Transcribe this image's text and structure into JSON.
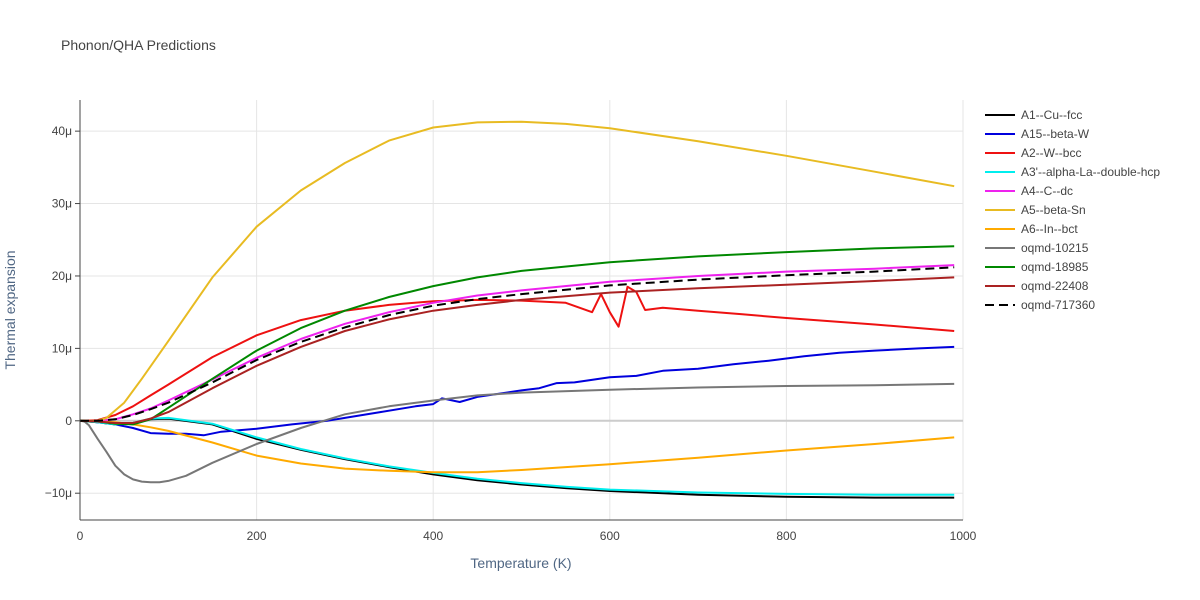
{
  "chart_data": {
    "type": "line",
    "title": "Phonon/QHA Predictions",
    "xlabel": "Temperature (K)",
    "ylabel": "Thermal expansion",
    "xlim": [
      0,
      1000
    ],
    "ylim": [
      -13.7,
      44.3
    ],
    "x_ticks": [
      0,
      200,
      400,
      600,
      800,
      1000
    ],
    "x_tick_labels": [
      "0",
      "200",
      "400",
      "600",
      "800",
      "1000"
    ],
    "y_ticks": [
      -10,
      0,
      10,
      20,
      30,
      40
    ],
    "y_tick_labels": [
      "−10μ",
      "0",
      "10μ",
      "20μ",
      "30μ",
      "40μ"
    ],
    "y_unit": "μ",
    "grid": true,
    "legend_position": "right",
    "series": [
      {
        "name": "A1--Cu--fcc",
        "color": "#000000",
        "dash": "solid",
        "x": [
          0,
          20,
          40,
          60,
          80,
          100,
          150,
          200,
          250,
          300,
          350,
          400,
          450,
          500,
          550,
          600,
          700,
          800,
          900,
          990
        ],
        "y": [
          0,
          -0.2,
          -0.5,
          -0.3,
          0.2,
          0.3,
          -0.5,
          -2.5,
          -4.0,
          -5.3,
          -6.4,
          -7.4,
          -8.2,
          -8.8,
          -9.3,
          -9.7,
          -10.2,
          -10.5,
          -10.6,
          -10.6
        ]
      },
      {
        "name": "A15--beta-W",
        "color": "#0000dd",
        "dash": "solid",
        "x": [
          0,
          20,
          40,
          60,
          80,
          100,
          120,
          140,
          160,
          180,
          200,
          240,
          280,
          300,
          340,
          380,
          400,
          410,
          430,
          450,
          500,
          520,
          540,
          560,
          600,
          630,
          660,
          700,
          740,
          780,
          820,
          860,
          900,
          950,
          990
        ],
        "y": [
          0,
          -0.2,
          -0.5,
          -1.0,
          -1.7,
          -1.8,
          -1.8,
          -2.0,
          -1.5,
          -1.3,
          -1.1,
          -0.5,
          0.0,
          0.4,
          1.2,
          2.0,
          2.3,
          3.1,
          2.6,
          3.3,
          4.2,
          4.5,
          5.2,
          5.3,
          6.0,
          6.2,
          6.9,
          7.2,
          7.8,
          8.3,
          8.9,
          9.4,
          9.7,
          10.0,
          10.2
        ]
      },
      {
        "name": "A2--W--bcc",
        "color": "#ee1111",
        "dash": "solid",
        "x": [
          0,
          20,
          40,
          60,
          80,
          100,
          150,
          200,
          250,
          300,
          350,
          400,
          450,
          500,
          550,
          580,
          590,
          600,
          610,
          620,
          630,
          640,
          660,
          700,
          750,
          800,
          900,
          990
        ],
        "y": [
          0,
          0.1,
          0.8,
          2.0,
          3.5,
          5.0,
          8.8,
          11.8,
          13.9,
          15.2,
          16.0,
          16.5,
          16.7,
          16.6,
          16.3,
          15.0,
          17.5,
          15.0,
          13.0,
          18.5,
          17.8,
          15.3,
          15.6,
          15.2,
          14.7,
          14.2,
          13.3,
          12.4
        ]
      },
      {
        "name": "A3'--alpha-La--double-hcp",
        "color": "#00eeee",
        "dash": "solid",
        "x": [
          0,
          20,
          40,
          60,
          80,
          100,
          150,
          200,
          250,
          300,
          350,
          400,
          450,
          500,
          550,
          600,
          700,
          800,
          900,
          990
        ],
        "y": [
          0,
          -0.2,
          -0.5,
          -0.3,
          0.3,
          0.4,
          -0.4,
          -2.3,
          -3.9,
          -5.2,
          -6.3,
          -7.2,
          -8.0,
          -8.6,
          -9.1,
          -9.5,
          -9.9,
          -10.1,
          -10.2,
          -10.2
        ]
      },
      {
        "name": "A4--C--dc",
        "color": "#ee22ee",
        "dash": "solid",
        "x": [
          0,
          20,
          40,
          60,
          80,
          100,
          150,
          200,
          250,
          300,
          350,
          400,
          450,
          500,
          600,
          700,
          800,
          900,
          990
        ],
        "y": [
          0,
          0.0,
          0.2,
          0.9,
          1.7,
          2.8,
          5.7,
          8.7,
          11.3,
          13.4,
          15.0,
          16.3,
          17.3,
          18.0,
          19.2,
          20.0,
          20.6,
          21.0,
          21.5
        ]
      },
      {
        "name": "A5--beta-Sn",
        "color": "#e8bb22",
        "dash": "solid",
        "x": [
          0,
          20,
          30,
          50,
          70,
          100,
          150,
          200,
          250,
          300,
          350,
          400,
          450,
          500,
          550,
          600,
          700,
          800,
          900,
          990
        ],
        "y": [
          0,
          0,
          0.4,
          2.5,
          5.8,
          11.0,
          19.8,
          26.8,
          31.8,
          35.6,
          38.7,
          40.5,
          41.2,
          41.3,
          41.0,
          40.4,
          38.6,
          36.6,
          34.4,
          32.4
        ]
      },
      {
        "name": "A6--In--bct",
        "color": "#ffaa00",
        "dash": "solid",
        "x": [
          0,
          20,
          40,
          60,
          80,
          100,
          150,
          200,
          250,
          300,
          350,
          400,
          450,
          500,
          600,
          700,
          800,
          900,
          990
        ],
        "y": [
          0,
          -0.1,
          -0.2,
          -0.5,
          -0.9,
          -1.4,
          -3.0,
          -4.8,
          -5.9,
          -6.6,
          -6.9,
          -7.1,
          -7.1,
          -6.8,
          -6.0,
          -5.1,
          -4.1,
          -3.2,
          -2.3
        ]
      },
      {
        "name": "oqmd-10215",
        "color": "#777777",
        "dash": "solid",
        "x": [
          0,
          5,
          10,
          20,
          30,
          40,
          50,
          60,
          70,
          80,
          90,
          100,
          120,
          150,
          200,
          250,
          300,
          350,
          400,
          450,
          500,
          600,
          700,
          800,
          900,
          990
        ],
        "y": [
          0,
          -0.1,
          -0.6,
          -2.5,
          -4.3,
          -6.2,
          -7.4,
          -8.1,
          -8.4,
          -8.5,
          -8.5,
          -8.3,
          -7.6,
          -5.8,
          -3.2,
          -1.0,
          0.9,
          2.0,
          2.8,
          3.5,
          3.9,
          4.3,
          4.6,
          4.8,
          4.9,
          5.1
        ]
      },
      {
        "name": "oqmd-18985",
        "color": "#008800",
        "dash": "solid",
        "x": [
          0,
          20,
          40,
          60,
          80,
          100,
          150,
          200,
          250,
          300,
          350,
          400,
          450,
          500,
          600,
          700,
          800,
          900,
          990
        ],
        "y": [
          0,
          -0.1,
          -0.4,
          -0.5,
          0.2,
          1.8,
          5.8,
          9.7,
          12.8,
          15.2,
          17.1,
          18.6,
          19.8,
          20.7,
          21.9,
          22.7,
          23.3,
          23.8,
          24.1
        ]
      },
      {
        "name": "oqmd-22408",
        "color": "#aa2222",
        "dash": "solid",
        "x": [
          0,
          20,
          40,
          60,
          80,
          100,
          150,
          200,
          250,
          300,
          350,
          400,
          450,
          500,
          600,
          700,
          800,
          900,
          990
        ],
        "y": [
          0,
          -0.1,
          -0.3,
          -0.3,
          0.3,
          1.2,
          4.5,
          7.6,
          10.2,
          12.4,
          14.0,
          15.2,
          16.0,
          16.7,
          17.7,
          18.3,
          18.8,
          19.3,
          19.8
        ]
      },
      {
        "name": "oqmd-717360",
        "color": "#000000",
        "dash": "dash",
        "x": [
          0,
          20,
          40,
          60,
          80,
          100,
          150,
          200,
          250,
          300,
          350,
          400,
          450,
          500,
          600,
          700,
          800,
          900,
          990
        ],
        "y": [
          0,
          0.0,
          0.2,
          0.8,
          1.6,
          2.5,
          5.3,
          8.4,
          10.9,
          12.9,
          14.6,
          15.9,
          16.8,
          17.5,
          18.7,
          19.5,
          20.1,
          20.6,
          21.2
        ]
      }
    ]
  }
}
